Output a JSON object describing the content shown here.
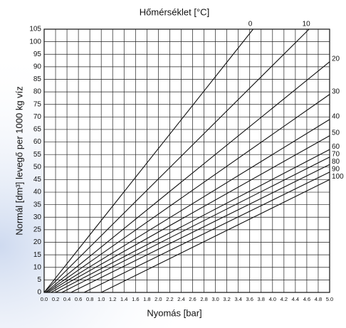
{
  "chart_data": {
    "type": "line",
    "title": "Hőmérséklet [°C]",
    "xlabel": "Nyomás [bar]",
    "ylabel": "Normál [dm³] levegő per 1000 kg víz",
    "xlim": [
      0,
      5
    ],
    "ylim": [
      0,
      105
    ],
    "xticks": [
      {
        "value": 0,
        "label": "0.0"
      },
      0.2,
      0.4,
      0.6,
      0.8,
      {
        "value": 1,
        "label": "1.0"
      },
      1.2,
      1.4,
      1.6,
      1.8,
      {
        "value": 2,
        "label": "2.0"
      },
      2.2,
      2.4,
      2.6,
      2.8,
      {
        "value": 3,
        "label": "3.0"
      },
      3.2,
      3.4,
      3.6,
      3.8,
      {
        "value": 4,
        "label": "4.0"
      },
      4.2,
      4.4,
      4.6,
      4.8,
      {
        "value": 5,
        "label": "5.0"
      }
    ],
    "yticks": [
      0,
      5,
      10,
      15,
      20,
      25,
      30,
      35,
      40,
      45,
      50,
      55,
      60,
      65,
      70,
      75,
      80,
      85,
      90,
      95,
      100,
      105
    ],
    "grid": true,
    "color": "#111111",
    "series": [
      {
        "name": "0",
        "x": [
          0,
          3.66
        ],
        "values": [
          0,
          105
        ]
      },
      {
        "name": "10",
        "x": [
          0,
          4.64
        ],
        "values": [
          0,
          105
        ]
      },
      {
        "name": "20",
        "x": [
          0.02,
          5
        ],
        "values": [
          0,
          92
        ]
      },
      {
        "name": "30",
        "x": [
          0.04,
          5
        ],
        "values": [
          0,
          79
        ]
      },
      {
        "name": "40",
        "x": [
          0.07,
          5
        ],
        "values": [
          0,
          69
        ]
      },
      {
        "name": "50",
        "x": [
          0.12,
          5
        ],
        "values": [
          0,
          62.5
        ]
      },
      {
        "name": "60",
        "x": [
          0.2,
          5
        ],
        "values": [
          0,
          57
        ]
      },
      {
        "name": "70",
        "x": [
          0.31,
          5
        ],
        "values": [
          0,
          54
        ]
      },
      {
        "name": "80",
        "x": [
          0.47,
          5
        ],
        "values": [
          0,
          51
        ]
      },
      {
        "name": "90",
        "x": [
          0.7,
          5
        ],
        "values": [
          0,
          48
        ]
      },
      {
        "name": "100",
        "x": [
          1,
          5
        ],
        "values": [
          0,
          45
        ]
      }
    ]
  }
}
